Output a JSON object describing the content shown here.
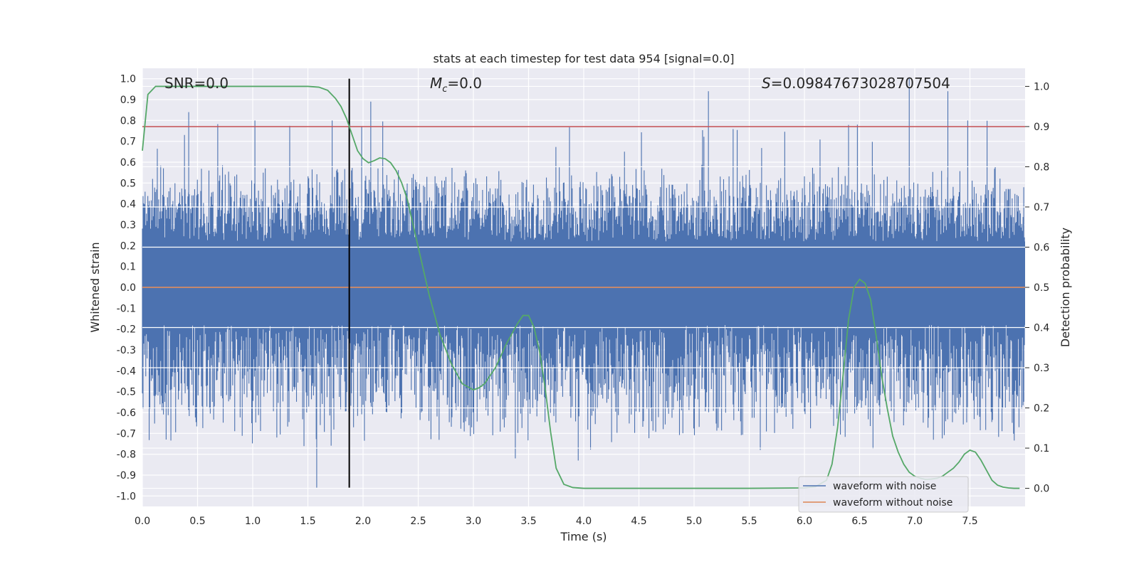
{
  "chart_data": {
    "type": "line",
    "title": "stats at each timestep for test data 954 [signal=0.0]",
    "xlabel": "Time (s)",
    "ylabel": "Whitened strain",
    "ylabel_right": "Detection probability",
    "xlim": [
      0.0,
      8.0
    ],
    "ylim": [
      -1.05,
      1.05
    ],
    "ylim_right": [
      -0.045,
      1.045
    ],
    "xticks": [
      "0.0",
      "0.5",
      "1.0",
      "1.5",
      "2.0",
      "2.5",
      "3.0",
      "3.5",
      "4.0",
      "4.5",
      "5.0",
      "5.5",
      "6.0",
      "6.5",
      "7.0",
      "7.5"
    ],
    "yticks": [
      "1.0",
      "0.9",
      "0.8",
      "0.7",
      "0.6",
      "0.5",
      "0.4",
      "0.3",
      "0.2",
      "0.1",
      "0.0",
      "-0.1",
      "-0.2",
      "-0.3",
      "-0.4",
      "-0.5",
      "-0.6",
      "-0.7",
      "-0.8",
      "-0.9",
      "-1.0"
    ],
    "yticks_right": [
      "1.0",
      "0.9",
      "0.8",
      "0.7",
      "0.6",
      "0.5",
      "0.4",
      "0.3",
      "0.2",
      "0.1",
      "0.0"
    ],
    "annotations": {
      "snr": "SNR=0.0",
      "mc_symbol": "M",
      "mc_sub": "c",
      "mc_value": "=0.0",
      "s_symbol": "S",
      "s_value": "=0.09847673028707504"
    },
    "threshold_line": {
      "axis": "right",
      "value": 0.9,
      "color": "#c44e52"
    },
    "marker_line": {
      "x": 1.875,
      "color": "#000000"
    },
    "series": [
      {
        "name": "waveform with noise",
        "color": "#4c72b0",
        "axis": "left",
        "description_envelope": {
          "core_low": -0.18,
          "core_high": 0.22,
          "typical_peak": 0.6,
          "max": 1.0,
          "min": -0.96
        },
        "peaks_t": [
          0.42,
          1.02,
          1.58,
          1.72,
          2.07,
          3.38,
          3.95,
          5.13,
          6.48,
          6.95,
          7.3,
          7.48
        ],
        "peaks_v": [
          0.84,
          0.8,
          -0.96,
          0.8,
          0.89,
          -0.82,
          -0.83,
          0.94,
          0.78,
          1.0,
          0.94,
          0.8
        ]
      },
      {
        "name": "waveform without noise",
        "color": "#dd8452",
        "axis": "left",
        "x": [
          0.0,
          8.0
        ],
        "y": [
          0.0,
          0.0
        ]
      },
      {
        "name": "detection probability",
        "color": "#55a868",
        "axis": "right",
        "x": [
          0.0,
          0.05,
          0.12,
          0.3,
          1.0,
          1.5,
          1.6,
          1.68,
          1.75,
          1.8,
          1.85,
          1.9,
          1.95,
          2.0,
          2.05,
          2.1,
          2.15,
          2.2,
          2.25,
          2.3,
          2.35,
          2.4,
          2.5,
          2.6,
          2.7,
          2.8,
          2.9,
          3.0,
          3.05,
          3.1,
          3.2,
          3.3,
          3.4,
          3.45,
          3.5,
          3.55,
          3.6,
          3.65,
          3.7,
          3.75,
          3.82,
          3.9,
          4.0,
          4.5,
          5.0,
          5.5,
          6.0,
          6.1,
          6.2,
          6.25,
          6.3,
          6.35,
          6.4,
          6.45,
          6.5,
          6.55,
          6.6,
          6.65,
          6.7,
          6.75,
          6.8,
          6.85,
          6.9,
          6.95,
          7.0,
          7.05,
          7.1,
          7.15,
          7.2,
          7.25,
          7.3,
          7.35,
          7.4,
          7.45,
          7.5,
          7.55,
          7.6,
          7.65,
          7.7,
          7.75,
          7.8,
          7.85,
          7.9,
          7.95
        ],
        "y": [
          0.84,
          0.98,
          1.0,
          1.0,
          1.0,
          1.0,
          0.998,
          0.99,
          0.97,
          0.95,
          0.92,
          0.88,
          0.84,
          0.82,
          0.81,
          0.815,
          0.822,
          0.82,
          0.81,
          0.79,
          0.76,
          0.72,
          0.6,
          0.48,
          0.38,
          0.31,
          0.26,
          0.245,
          0.25,
          0.26,
          0.3,
          0.36,
          0.41,
          0.43,
          0.43,
          0.4,
          0.34,
          0.25,
          0.14,
          0.05,
          0.01,
          0.002,
          0.0,
          0.0,
          0.0,
          0.0,
          0.001,
          0.004,
          0.02,
          0.06,
          0.15,
          0.28,
          0.42,
          0.5,
          0.52,
          0.51,
          0.47,
          0.38,
          0.28,
          0.2,
          0.13,
          0.09,
          0.06,
          0.04,
          0.03,
          0.025,
          0.022,
          0.023,
          0.025,
          0.03,
          0.04,
          0.05,
          0.065,
          0.085,
          0.095,
          0.09,
          0.07,
          0.045,
          0.02,
          0.008,
          0.003,
          0.001,
          0.0,
          0.0
        ]
      }
    ],
    "legend": {
      "placement": "lower-right",
      "entries": [
        "waveform with noise",
        "waveform without noise"
      ]
    }
  }
}
